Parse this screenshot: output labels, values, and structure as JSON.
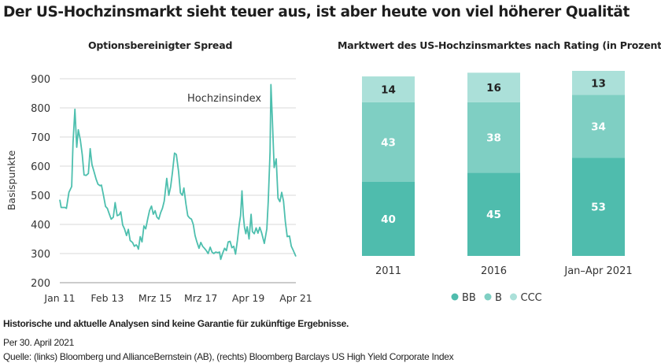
{
  "title": "Der US-Hochzinsmarkt sieht teuer aus, ist aber heute von viel höherer Qualität",
  "chart_data": [
    {
      "type": "line",
      "title": "Optionsbereinigter Spread",
      "ylabel": "Basispunkte",
      "xlabel": "",
      "ylim": [
        200,
        900
      ],
      "xlim": [
        2011.0,
        2021.33
      ],
      "yticks": [
        "200",
        "300",
        "400",
        "500",
        "600",
        "700",
        "800",
        "900"
      ],
      "xticks": [
        {
          "label": "Jan 11",
          "x": 2011.0
        },
        {
          "label": "Feb 13",
          "x": 2013.08
        },
        {
          "label": "Mrz 15",
          "x": 2015.17
        },
        {
          "label": "Mrz 17",
          "x": 2017.17
        },
        {
          "label": "Apr 19",
          "x": 2019.25
        },
        {
          "label": "Apr 21",
          "x": 2021.33
        }
      ],
      "grid": true,
      "series": [
        {
          "name": "Hochzinsindex",
          "color": "#4dbfae",
          "x": [
            2011.0,
            2011.06,
            2011.23,
            2011.29,
            2011.4,
            2011.52,
            2011.58,
            2011.66,
            2011.74,
            2011.81,
            2011.9,
            2011.98,
            2012.06,
            2012.15,
            2012.25,
            2012.33,
            2012.41,
            2012.5,
            2012.59,
            2012.67,
            2012.76,
            2012.82,
            2012.91,
            2013.0,
            2013.08,
            2013.17,
            2013.25,
            2013.34,
            2013.42,
            2013.51,
            2013.6,
            2013.67,
            2013.75,
            2013.83,
            2013.92,
            2014.0,
            2014.08,
            2014.18,
            2014.26,
            2014.34,
            2014.39,
            2014.44,
            2014.52,
            2014.6,
            2014.68,
            2014.76,
            2014.85,
            2014.93,
            2015.01,
            2015.09,
            2015.17,
            2015.25,
            2015.33,
            2015.41,
            2015.49,
            2015.57,
            2015.68,
            2015.77,
            2015.85,
            2015.93,
            2016.02,
            2016.1,
            2016.2,
            2016.28,
            2016.36,
            2016.43,
            2016.52,
            2016.6,
            2016.68,
            2016.76,
            2016.84,
            2016.92,
            2017.0,
            2017.09,
            2017.17,
            2017.25,
            2017.33,
            2017.41,
            2017.49,
            2017.58,
            2017.66,
            2017.74,
            2017.82,
            2017.91,
            2017.99,
            2018.04,
            2018.12,
            2018.21,
            2018.29,
            2018.37,
            2018.45,
            2018.53,
            2018.61,
            2018.69,
            2018.77,
            2018.85,
            2018.91,
            2018.97,
            2019.03,
            2019.08,
            2019.14,
            2019.2,
            2019.28,
            2019.37,
            2019.43,
            2019.51,
            2019.59,
            2019.67,
            2019.75,
            2019.83,
            2019.95,
            2020.06,
            2020.12,
            2020.2,
            2020.24,
            2020.3,
            2020.38,
            2020.47,
            2020.55,
            2020.63,
            2020.71,
            2020.79,
            2020.87,
            2020.95,
            2021.05,
            2021.13,
            2021.22,
            2021.33
          ],
          "y": [
            485,
            458,
            458,
            455,
            510,
            530,
            680,
            795,
            665,
            725,
            690,
            640,
            570,
            568,
            575,
            660,
            605,
            580,
            555,
            538,
            533,
            535,
            500,
            462,
            455,
            435,
            418,
            425,
            475,
            430,
            433,
            443,
            398,
            385,
            362,
            383,
            345,
            338,
            325,
            330,
            325,
            315,
            358,
            340,
            395,
            385,
            420,
            448,
            463,
            435,
            447,
            425,
            418,
            440,
            455,
            480,
            558,
            500,
            530,
            580,
            645,
            640,
            580,
            508,
            500,
            525,
            470,
            430,
            422,
            418,
            400,
            362,
            340,
            318,
            338,
            325,
            318,
            310,
            300,
            322,
            305,
            300,
            305,
            303,
            305,
            280,
            300,
            318,
            310,
            340,
            342,
            320,
            325,
            298,
            345,
            400,
            430,
            515,
            430,
            390,
            368,
            392,
            350,
            435,
            375,
            368,
            388,
            370,
            390,
            372,
            335,
            385,
            480,
            650,
            880,
            760,
            595,
            625,
            490,
            478,
            510,
            480,
            410,
            358,
            360,
            325,
            310,
            290
          ]
        }
      ]
    },
    {
      "type": "bar",
      "stacked": true,
      "title": "Marktwert des US-Hochzinsmarktes nach Rating (in Prozent)",
      "categories": [
        "2011",
        "2016",
        "Jan–Apr 2021"
      ],
      "series": [
        {
          "name": "BB",
          "color": "#4fbcad",
          "values": [
            40,
            45,
            53
          ]
        },
        {
          "name": "B",
          "color": "#7fcfc3",
          "values": [
            43,
            38,
            34
          ]
        },
        {
          "name": "CCC",
          "color": "#abe0d9",
          "values": [
            14,
            16,
            13
          ]
        }
      ],
      "ylim": [
        0,
        100
      ],
      "legend": "bottom"
    }
  ],
  "footer": {
    "disclaimer": "Historische und aktuelle Analysen sind keine Garantie für zukünftige Ergebnisse.",
    "date": "Per 30. April 2021",
    "source": "Quelle: (links) Bloomberg und AllianceBernstein (AB), (rechts) Bloomberg Barclays US High Yield Corporate Index"
  }
}
